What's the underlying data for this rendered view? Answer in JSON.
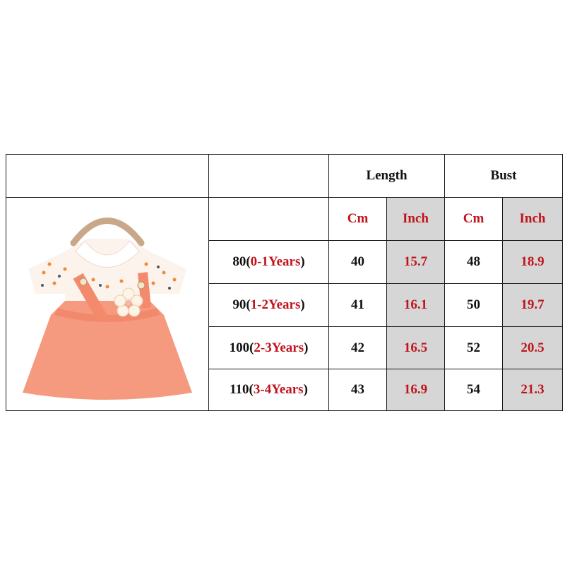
{
  "colors": {
    "accent_red": "#c0141c",
    "inch_bg": "#d6d6d6",
    "dress": "#f59a7e"
  },
  "header": {
    "length": "Length",
    "bust": "Bust"
  },
  "units": {
    "length_cm": "Cm",
    "length_inch": "Inch",
    "bust_cm": "Cm",
    "bust_inch": "Inch"
  },
  "image": {
    "icon": "dress-product-photo"
  },
  "rows": [
    {
      "size": "80",
      "open": "(",
      "age": "0-1Years",
      "close": ")",
      "length_cm": "40",
      "length_inch": "15.7",
      "bust_cm": "48",
      "bust_inch": "18.9"
    },
    {
      "size": "90",
      "open": "(",
      "age": "1-2Years",
      "close": ")",
      "length_cm": "41",
      "length_inch": "16.1",
      "bust_cm": "50",
      "bust_inch": "19.7"
    },
    {
      "size": "100",
      "open": "(",
      "age": "2-3Years",
      "close": ")",
      "length_cm": "42",
      "length_inch": "16.5",
      "bust_cm": "52",
      "bust_inch": "20.5"
    },
    {
      "size": "110",
      "open": "(",
      "age": "3-4Years",
      "close": ")",
      "length_cm": "43",
      "length_inch": "16.9",
      "bust_cm": "54",
      "bust_inch": "21.3"
    }
  ]
}
